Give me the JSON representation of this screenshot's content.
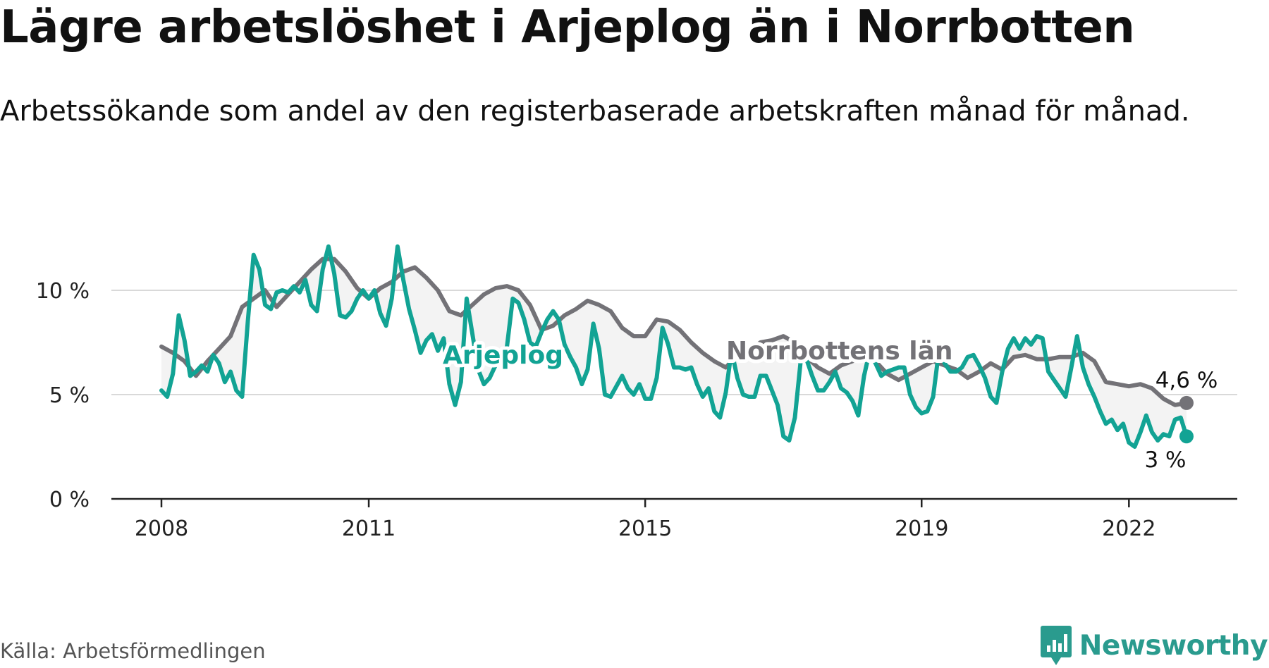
{
  "title": "Lägre arbetslöshet i Arjeplog än i Norrbotten",
  "subtitle": "Arbetssökande som andel av den registerbaserade arbetskraften månad för månad.",
  "source": "Källa: Arbetsförmedlingen",
  "brand": "Newsworthy",
  "colors": {
    "arjeplog": "#12a394",
    "norrbotten": "#737277",
    "gap_fill": "#f3f3f3",
    "brand": "#2a9b8e"
  },
  "chart_data": {
    "type": "line",
    "title": "Lägre arbetslöshet i Arjeplog än i Norrbotten",
    "subtitle": "Arbetssökande som andel av den registerbaserade arbetskraften månad för månad.",
    "xlabel": "",
    "ylabel": "",
    "x_start": "2008-01",
    "x_end": "2022-11",
    "x_ticks": [
      {
        "value": "2008-01",
        "label": "2008"
      },
      {
        "value": "2011-01",
        "label": "2011"
      },
      {
        "value": "2015-01",
        "label": "2015"
      },
      {
        "value": "2019-01",
        "label": "2019"
      },
      {
        "value": "2022-01",
        "label": "2022"
      }
    ],
    "ylim": [
      0,
      12
    ],
    "y_ticks": [
      {
        "value": 0,
        "label": "0 %"
      },
      {
        "value": 5,
        "label": "5 %"
      },
      {
        "value": 10,
        "label": "10 %"
      }
    ],
    "grid": true,
    "legend": "inline",
    "series": [
      {
        "name": "Norrbottens län",
        "end_label": "4,6 %",
        "color": "#737277",
        "points": [
          [
            "2008-01",
            7.3
          ],
          [
            "2008-03",
            7.0
          ],
          [
            "2008-05",
            6.6
          ],
          [
            "2008-07",
            5.9
          ],
          [
            "2008-09",
            6.6
          ],
          [
            "2008-11",
            7.2
          ],
          [
            "2009-01",
            7.8
          ],
          [
            "2009-03",
            9.2
          ],
          [
            "2009-05",
            9.6
          ],
          [
            "2009-07",
            10.0
          ],
          [
            "2009-09",
            9.2
          ],
          [
            "2009-11",
            9.8
          ],
          [
            "2010-01",
            10.4
          ],
          [
            "2010-03",
            11.0
          ],
          [
            "2010-05",
            11.5
          ],
          [
            "2010-07",
            11.5
          ],
          [
            "2010-09",
            10.9
          ],
          [
            "2010-11",
            10.1
          ],
          [
            "2011-01",
            9.6
          ],
          [
            "2011-03",
            10.1
          ],
          [
            "2011-05",
            10.4
          ],
          [
            "2011-07",
            10.9
          ],
          [
            "2011-09",
            11.1
          ],
          [
            "2011-11",
            10.6
          ],
          [
            "2012-01",
            10.0
          ],
          [
            "2012-03",
            9.0
          ],
          [
            "2012-05",
            8.8
          ],
          [
            "2012-07",
            9.3
          ],
          [
            "2012-09",
            9.8
          ],
          [
            "2012-11",
            10.1
          ],
          [
            "2013-01",
            10.2
          ],
          [
            "2013-03",
            10.0
          ],
          [
            "2013-05",
            9.3
          ],
          [
            "2013-07",
            8.1
          ],
          [
            "2013-09",
            8.3
          ],
          [
            "2013-11",
            8.8
          ],
          [
            "2014-01",
            9.1
          ],
          [
            "2014-03",
            9.5
          ],
          [
            "2014-05",
            9.3
          ],
          [
            "2014-07",
            9.0
          ],
          [
            "2014-09",
            8.2
          ],
          [
            "2014-11",
            7.8
          ],
          [
            "2015-01",
            7.8
          ],
          [
            "2015-03",
            8.6
          ],
          [
            "2015-05",
            8.5
          ],
          [
            "2015-07",
            8.1
          ],
          [
            "2015-09",
            7.5
          ],
          [
            "2015-11",
            7.0
          ],
          [
            "2016-01",
            6.6
          ],
          [
            "2016-03",
            6.3
          ],
          [
            "2016-05",
            6.9
          ],
          [
            "2016-07",
            7.1
          ],
          [
            "2016-09",
            7.5
          ],
          [
            "2016-11",
            7.6
          ],
          [
            "2017-01",
            7.8
          ],
          [
            "2017-03",
            7.5
          ],
          [
            "2017-05",
            6.8
          ],
          [
            "2017-07",
            6.3
          ],
          [
            "2017-09",
            6.0
          ],
          [
            "2017-11",
            6.4
          ],
          [
            "2018-01",
            6.6
          ],
          [
            "2018-03",
            6.9
          ],
          [
            "2018-05",
            6.6
          ],
          [
            "2018-07",
            6.0
          ],
          [
            "2018-09",
            5.7
          ],
          [
            "2018-11",
            6.0
          ],
          [
            "2019-01",
            6.3
          ],
          [
            "2019-03",
            6.6
          ],
          [
            "2019-05",
            6.4
          ],
          [
            "2019-07",
            6.2
          ],
          [
            "2019-09",
            5.8
          ],
          [
            "2019-11",
            6.1
          ],
          [
            "2020-01",
            6.5
          ],
          [
            "2020-03",
            6.2
          ],
          [
            "2020-05",
            6.8
          ],
          [
            "2020-07",
            6.9
          ],
          [
            "2020-09",
            6.7
          ],
          [
            "2020-11",
            6.7
          ],
          [
            "2021-01",
            6.8
          ],
          [
            "2021-03",
            6.8
          ],
          [
            "2021-05",
            7.0
          ],
          [
            "2021-07",
            6.6
          ],
          [
            "2021-09",
            5.6
          ],
          [
            "2021-11",
            5.5
          ],
          [
            "2022-01",
            5.4
          ],
          [
            "2022-03",
            5.5
          ],
          [
            "2022-05",
            5.3
          ],
          [
            "2022-07",
            4.8
          ],
          [
            "2022-09",
            4.5
          ],
          [
            "2022-11",
            4.6
          ]
        ]
      },
      {
        "name": "Arjeplog",
        "end_label": "3 %",
        "color": "#12a394",
        "points": [
          [
            "2008-01",
            5.2
          ],
          [
            "2008-02",
            4.9
          ],
          [
            "2008-03",
            6.0
          ],
          [
            "2008-04",
            8.8
          ],
          [
            "2008-05",
            7.6
          ],
          [
            "2008-06",
            5.9
          ],
          [
            "2008-07",
            6.1
          ],
          [
            "2008-08",
            6.4
          ],
          [
            "2008-09",
            6.1
          ],
          [
            "2008-10",
            6.9
          ],
          [
            "2008-11",
            6.5
          ],
          [
            "2008-12",
            5.6
          ],
          [
            "2009-01",
            6.1
          ],
          [
            "2009-02",
            5.2
          ],
          [
            "2009-03",
            4.9
          ],
          [
            "2009-04",
            8.5
          ],
          [
            "2009-05",
            11.7
          ],
          [
            "2009-06",
            11.0
          ],
          [
            "2009-07",
            9.3
          ],
          [
            "2009-08",
            9.1
          ],
          [
            "2009-09",
            9.9
          ],
          [
            "2009-10",
            10.0
          ],
          [
            "2009-11",
            9.9
          ],
          [
            "2009-12",
            10.2
          ],
          [
            "2010-01",
            9.9
          ],
          [
            "2010-02",
            10.5
          ],
          [
            "2010-03",
            9.3
          ],
          [
            "2010-04",
            9.0
          ],
          [
            "2010-05",
            11.0
          ],
          [
            "2010-06",
            12.1
          ],
          [
            "2010-07",
            10.8
          ],
          [
            "2010-08",
            8.8
          ],
          [
            "2010-09",
            8.7
          ],
          [
            "2010-10",
            9.0
          ],
          [
            "2010-11",
            9.6
          ],
          [
            "2010-12",
            10.0
          ],
          [
            "2011-01",
            9.6
          ],
          [
            "2011-02",
            10.0
          ],
          [
            "2011-03",
            8.9
          ],
          [
            "2011-04",
            8.3
          ],
          [
            "2011-05",
            9.6
          ],
          [
            "2011-06",
            12.1
          ],
          [
            "2011-07",
            10.5
          ],
          [
            "2011-08",
            9.1
          ],
          [
            "2011-09",
            8.1
          ],
          [
            "2011-10",
            7.0
          ],
          [
            "2011-11",
            7.6
          ],
          [
            "2011-12",
            7.9
          ],
          [
            "2012-01",
            7.1
          ],
          [
            "2012-02",
            7.7
          ],
          [
            "2012-03",
            5.5
          ],
          [
            "2012-04",
            4.5
          ],
          [
            "2012-05",
            5.6
          ],
          [
            "2012-06",
            9.6
          ],
          [
            "2012-07",
            7.9
          ],
          [
            "2012-08",
            6.2
          ],
          [
            "2012-09",
            5.5
          ],
          [
            "2012-10",
            5.8
          ],
          [
            "2012-11",
            6.4
          ],
          [
            "2012-12",
            6.9
          ],
          [
            "2013-01",
            7.3
          ],
          [
            "2013-02",
            9.6
          ],
          [
            "2013-03",
            9.4
          ],
          [
            "2013-04",
            8.6
          ],
          [
            "2013-05",
            7.5
          ],
          [
            "2013-06",
            7.3
          ],
          [
            "2013-07",
            8.0
          ],
          [
            "2013-08",
            8.6
          ],
          [
            "2013-09",
            9.0
          ],
          [
            "2013-10",
            8.6
          ],
          [
            "2013-11",
            7.4
          ],
          [
            "2013-12",
            6.8
          ],
          [
            "2014-01",
            6.3
          ],
          [
            "2014-02",
            5.5
          ],
          [
            "2014-03",
            6.2
          ],
          [
            "2014-04",
            8.4
          ],
          [
            "2014-05",
            7.2
          ],
          [
            "2014-06",
            5.0
          ],
          [
            "2014-07",
            4.9
          ],
          [
            "2014-08",
            5.4
          ],
          [
            "2014-09",
            5.9
          ],
          [
            "2014-10",
            5.3
          ],
          [
            "2014-11",
            5.0
          ],
          [
            "2014-12",
            5.5
          ],
          [
            "2015-01",
            4.8
          ],
          [
            "2015-02",
            4.8
          ],
          [
            "2015-03",
            5.8
          ],
          [
            "2015-04",
            8.2
          ],
          [
            "2015-05",
            7.4
          ],
          [
            "2015-06",
            6.3
          ],
          [
            "2015-07",
            6.3
          ],
          [
            "2015-08",
            6.2
          ],
          [
            "2015-09",
            6.3
          ],
          [
            "2015-10",
            5.5
          ],
          [
            "2015-11",
            4.9
          ],
          [
            "2015-12",
            5.3
          ],
          [
            "2016-01",
            4.2
          ],
          [
            "2016-02",
            3.9
          ],
          [
            "2016-03",
            5.1
          ],
          [
            "2016-04",
            7.1
          ],
          [
            "2016-05",
            5.8
          ],
          [
            "2016-06",
            5.0
          ],
          [
            "2016-07",
            4.9
          ],
          [
            "2016-08",
            4.9
          ],
          [
            "2016-09",
            5.9
          ],
          [
            "2016-10",
            5.9
          ],
          [
            "2016-11",
            5.2
          ],
          [
            "2016-12",
            4.5
          ],
          [
            "2017-01",
            3.0
          ],
          [
            "2017-02",
            2.8
          ],
          [
            "2017-03",
            3.9
          ],
          [
            "2017-04",
            6.6
          ],
          [
            "2017-05",
            6.7
          ],
          [
            "2017-06",
            5.9
          ],
          [
            "2017-07",
            5.2
          ],
          [
            "2017-08",
            5.2
          ],
          [
            "2017-09",
            5.6
          ],
          [
            "2017-10",
            6.1
          ],
          [
            "2017-11",
            5.3
          ],
          [
            "2017-12",
            5.1
          ],
          [
            "2018-01",
            4.7
          ],
          [
            "2018-02",
            4.0
          ],
          [
            "2018-03",
            5.9
          ],
          [
            "2018-04",
            7.1
          ],
          [
            "2018-05",
            6.5
          ],
          [
            "2018-06",
            5.9
          ],
          [
            "2018-07",
            6.1
          ],
          [
            "2018-08",
            6.2
          ],
          [
            "2018-09",
            6.3
          ],
          [
            "2018-10",
            6.3
          ],
          [
            "2018-11",
            5.0
          ],
          [
            "2018-12",
            4.4
          ],
          [
            "2019-01",
            4.1
          ],
          [
            "2019-02",
            4.2
          ],
          [
            "2019-03",
            4.9
          ],
          [
            "2019-04",
            7.1
          ],
          [
            "2019-05",
            6.5
          ],
          [
            "2019-06",
            6.1
          ],
          [
            "2019-07",
            6.1
          ],
          [
            "2019-08",
            6.3
          ],
          [
            "2019-09",
            6.8
          ],
          [
            "2019-10",
            6.9
          ],
          [
            "2019-11",
            6.4
          ],
          [
            "2019-12",
            5.8
          ],
          [
            "2020-01",
            4.9
          ],
          [
            "2020-02",
            4.6
          ],
          [
            "2020-03",
            6.1
          ],
          [
            "2020-04",
            7.2
          ],
          [
            "2020-05",
            7.7
          ],
          [
            "2020-06",
            7.2
          ],
          [
            "2020-07",
            7.7
          ],
          [
            "2020-08",
            7.4
          ],
          [
            "2020-09",
            7.8
          ],
          [
            "2020-10",
            7.7
          ],
          [
            "2020-11",
            6.1
          ],
          [
            "2020-12",
            5.7
          ],
          [
            "2021-01",
            5.3
          ],
          [
            "2021-02",
            4.9
          ],
          [
            "2021-03",
            6.3
          ],
          [
            "2021-04",
            7.8
          ],
          [
            "2021-05",
            6.3
          ],
          [
            "2021-06",
            5.5
          ],
          [
            "2021-07",
            4.9
          ],
          [
            "2021-08",
            4.2
          ],
          [
            "2021-09",
            3.6
          ],
          [
            "2021-10",
            3.8
          ],
          [
            "2021-11",
            3.3
          ],
          [
            "2021-12",
            3.6
          ],
          [
            "2022-01",
            2.7
          ],
          [
            "2022-02",
            2.5
          ],
          [
            "2022-03",
            3.2
          ],
          [
            "2022-04",
            4.0
          ],
          [
            "2022-05",
            3.2
          ],
          [
            "2022-06",
            2.8
          ],
          [
            "2022-07",
            3.1
          ],
          [
            "2022-08",
            3.0
          ],
          [
            "2022-09",
            3.8
          ],
          [
            "2022-10",
            3.9
          ],
          [
            "2022-11",
            3.0
          ]
        ]
      }
    ]
  }
}
